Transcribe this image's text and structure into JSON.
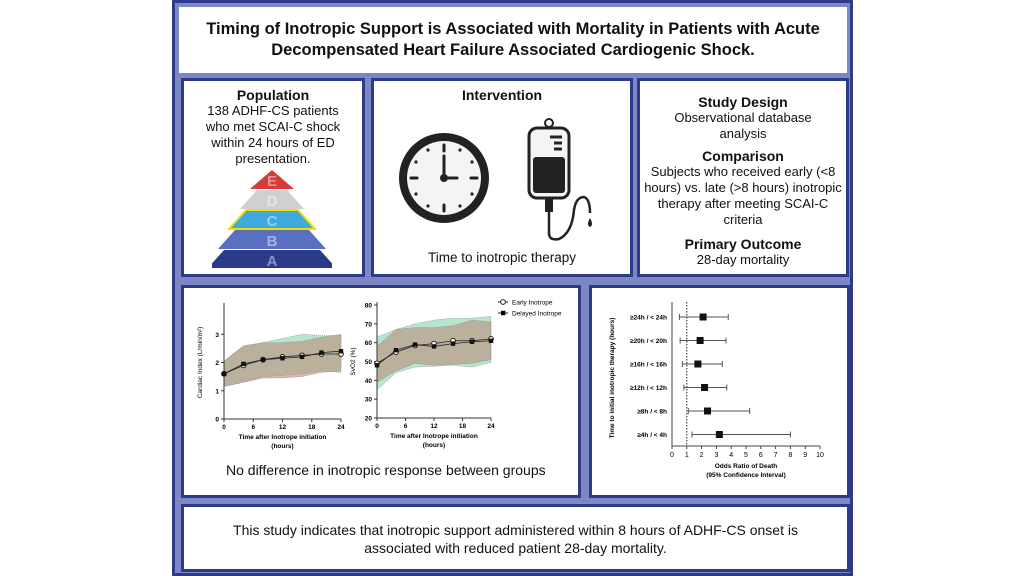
{
  "title": "Timing of Inotropic Support is Associated with Mortality in Patients with Acute Decompensated Heart Failure Associated Cardiogenic Shock.",
  "population": {
    "heading": "Population",
    "text": "138 ADHF-CS patients who met SCAI-C shock within 24 hours of ED presentation.",
    "pyramid": [
      {
        "label": "E",
        "color": "#d63a3a"
      },
      {
        "label": "D",
        "color": "#d0d0d0"
      },
      {
        "label": "C",
        "color": "#3fa9df"
      },
      {
        "label": "B",
        "color": "#5b6fc0"
      },
      {
        "label": "A",
        "color": "#2c3a8a"
      }
    ]
  },
  "intervention": {
    "heading": "Intervention",
    "caption": "Time to inotropic therapy",
    "icons": [
      "clock-icon",
      "iv-bag-icon"
    ]
  },
  "design": {
    "heading": "Study Design",
    "text": "Observational database analysis",
    "comparison_heading": "Comparison",
    "comparison_text": "Subjects who received early (<8 hours) vs. late (>8 hours) inotropic therapy after meeting SCAI-C criteria",
    "outcome_heading": "Primary Outcome",
    "outcome_text": "28-day mortality"
  },
  "response_caption": "No difference in inotropic response between groups",
  "conclusion": "This study indicates that inotropic support administered within 8 hours of ADHF-CS onset is associated with reduced patient 28-day mortality.",
  "chart_data": [
    {
      "type": "line",
      "ylabel": "Cardiac Index (L/min/m²)",
      "xlabel": "Time after Inotrope initiation (hours)",
      "x": [
        0,
        4,
        8,
        12,
        16,
        20,
        24
      ],
      "xticks": [
        0,
        6,
        12,
        18,
        24
      ],
      "ylim": [
        0,
        4
      ],
      "yticks": [
        0,
        1,
        2,
        3
      ],
      "series": [
        {
          "name": "Early Inotrope",
          "values": [
            1.6,
            1.9,
            2.1,
            2.2,
            2.25,
            2.3,
            2.3
          ],
          "band_upper": [
            2.05,
            2.55,
            2.7,
            2.85,
            3.0,
            2.95,
            2.95
          ],
          "band_lower": [
            1.15,
            1.3,
            1.5,
            1.55,
            1.6,
            1.7,
            1.65
          ]
        },
        {
          "name": "Delayed Inotrope",
          "values": [
            1.6,
            1.95,
            2.1,
            2.15,
            2.2,
            2.35,
            2.4
          ],
          "band_upper": [
            2.05,
            2.6,
            2.7,
            2.7,
            2.75,
            2.9,
            3.0
          ],
          "band_lower": [
            1.15,
            1.3,
            1.45,
            1.45,
            1.5,
            1.65,
            1.7
          ]
        }
      ]
    },
    {
      "type": "line",
      "ylabel": "SvO2 (%)",
      "xlabel": "Time after Inotrope initiation (hours)",
      "x": [
        0,
        4,
        8,
        12,
        16,
        20,
        24
      ],
      "xticks": [
        0,
        6,
        12,
        18,
        24
      ],
      "ylim": [
        20,
        80
      ],
      "yticks": [
        20,
        30,
        40,
        50,
        60,
        70,
        80
      ],
      "legend": "top-right",
      "series": [
        {
          "name": "Early Inotrope",
          "values": [
            49,
            55,
            58.5,
            59.5,
            61,
            61,
            62
          ],
          "band_upper": [
            63,
            67,
            70,
            72,
            73,
            73,
            74
          ],
          "band_lower": [
            35,
            44,
            47,
            47.5,
            48,
            47,
            49.5
          ]
        },
        {
          "name": "Delayed Inotrope",
          "values": [
            48,
            56,
            59,
            58,
            59.5,
            60.5,
            61
          ],
          "band_upper": [
            58,
            67,
            68,
            68,
            69,
            72,
            71
          ],
          "band_lower": [
            39,
            45,
            49,
            48,
            48.5,
            49,
            51
          ]
        }
      ]
    },
    {
      "type": "forest",
      "title": "",
      "ylabel": "Time to initial inotropic therapy (hours)",
      "xlabel": "Odds Ratio of Death (95% Confidence Interval)",
      "xlim": [
        0,
        10
      ],
      "xticks": [
        0,
        1,
        2,
        3,
        4,
        5,
        6,
        7,
        8,
        9,
        10
      ],
      "reference": 1,
      "categories": [
        "≥24h / < 24h",
        "≥20h / < 20h",
        "≥16h / < 16h",
        "≥12h / < 12h",
        "≥8h / < 8h",
        "≥4h / < 4h"
      ],
      "values": [
        2.1,
        1.9,
        1.75,
        2.2,
        2.4,
        3.2
      ],
      "lower": [
        0.5,
        0.55,
        0.7,
        0.8,
        1.1,
        1.35
      ],
      "upper": [
        3.8,
        3.65,
        3.4,
        3.7,
        5.25,
        8.0
      ]
    }
  ]
}
